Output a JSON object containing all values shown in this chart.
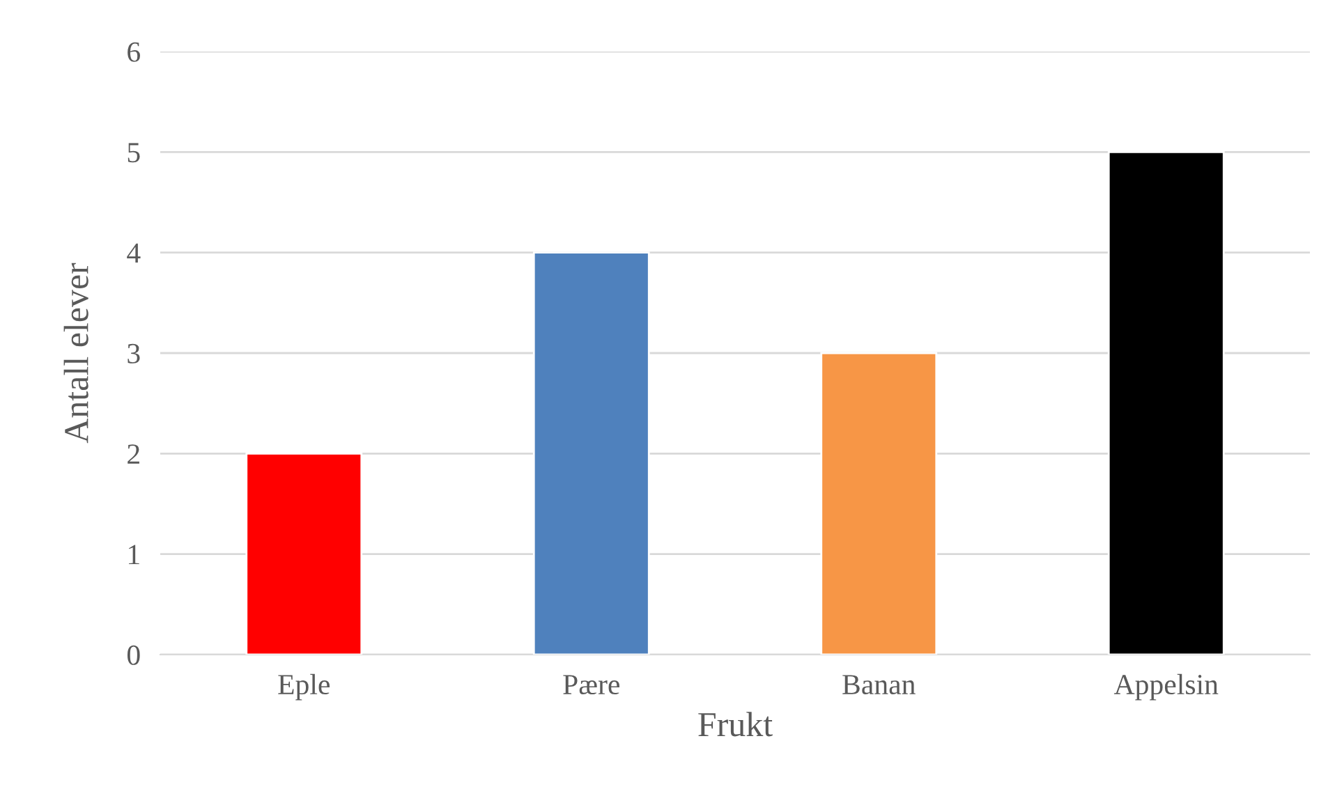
{
  "chart_data": {
    "type": "bar",
    "xlabel": "Frukt",
    "ylabel": "Antall elever",
    "categories": [
      "Eple",
      "Pære",
      "Banan",
      "Appelsin"
    ],
    "values": [
      2,
      4,
      3,
      5
    ],
    "colors": [
      "#ff0000",
      "#4f81bd",
      "#f79646",
      "#000000"
    ],
    "ylim": [
      0,
      6
    ],
    "yticks": [
      0,
      1,
      2,
      3,
      4,
      5,
      6
    ],
    "grid": "y",
    "legend": false
  }
}
